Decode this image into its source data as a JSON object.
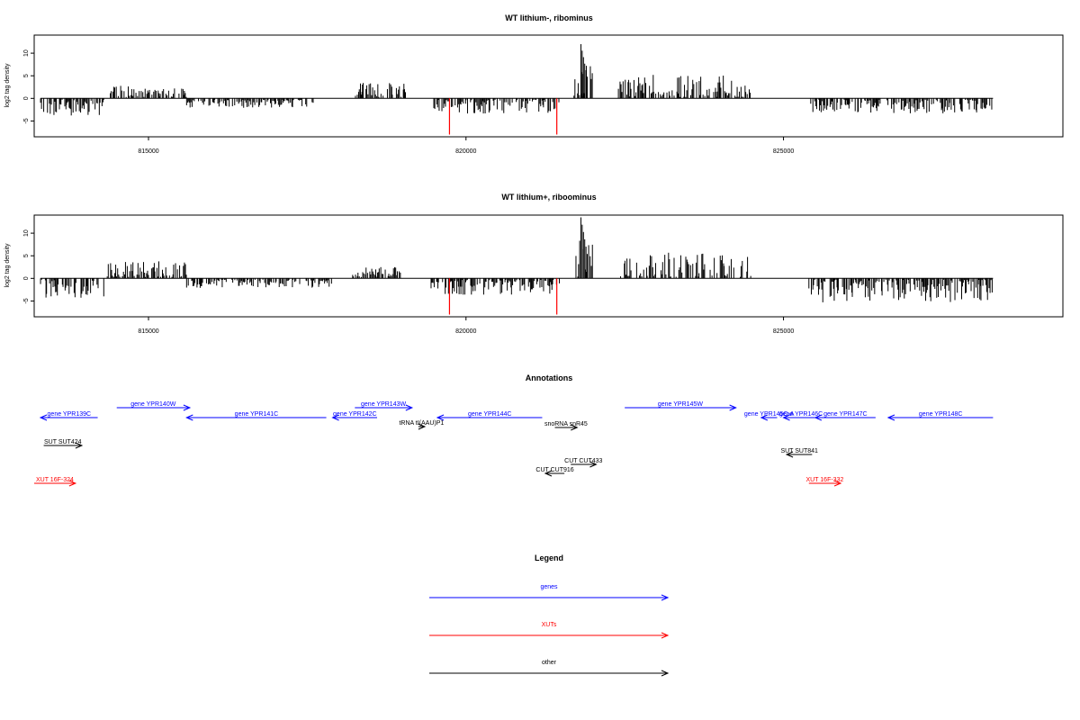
{
  "colors": {
    "genes": "#0000ff",
    "XUTs": "#ff0000",
    "other": "#000000",
    "axis": "#000000"
  },
  "chart_data": [
    {
      "type": "bar",
      "title": "WT lithium-, ribominus",
      "ylabel": "log2 tag density",
      "xlim": [
        813200,
        829400
      ],
      "ylim": [
        -8.5,
        14
      ],
      "xticks": [
        815000,
        820000,
        825000
      ],
      "xtick_labels": [
        "815000",
        "820000",
        "825000"
      ],
      "yticks": [
        -5,
        0,
        5,
        10
      ],
      "ytick_labels": [
        "-5",
        "0",
        "5",
        "10"
      ],
      "grid": false,
      "regions": [
        {
          "from": 813300,
          "to": 814300,
          "sign": -1,
          "amp": 3.5
        },
        {
          "from": 814400,
          "to": 815600,
          "sign": 1,
          "amp": 2.5
        },
        {
          "from": 815600,
          "to": 817600,
          "sign": -1,
          "amp": 1.8
        },
        {
          "from": 818250,
          "to": 819050,
          "sign": 1,
          "amp": 3.2
        },
        {
          "from": 819450,
          "to": 821500,
          "sign": -1,
          "amp": 3.2
        },
        {
          "from": 821700,
          "to": 822000,
          "sign": 1,
          "amp": 8.5
        },
        {
          "from": 822400,
          "to": 824500,
          "sign": 1,
          "amp": 5.0
        },
        {
          "from": 825400,
          "to": 828300,
          "sign": -1,
          "amp": 3.0
        }
      ],
      "highlights": [
        {
          "x": 819740,
          "value": -8,
          "color": "#ff0000"
        },
        {
          "x": 821430,
          "value": -8,
          "color": "#ff0000"
        }
      ],
      "peaks": [
        {
          "x": 821810,
          "value": 12
        }
      ]
    },
    {
      "type": "bar",
      "title": "WT lithium+, riboominus",
      "ylabel": "log2 tag density",
      "xlim": [
        813200,
        829400
      ],
      "ylim": [
        -8.5,
        14
      ],
      "xticks": [
        815000,
        820000,
        825000
      ],
      "xtick_labels": [
        "815000",
        "820000",
        "825000"
      ],
      "yticks": [
        -5,
        0,
        5,
        10
      ],
      "ytick_labels": [
        "-5",
        "0",
        "5",
        "10"
      ],
      "grid": false,
      "regions": [
        {
          "from": 813300,
          "to": 814300,
          "sign": -1,
          "amp": 4.0
        },
        {
          "from": 814350,
          "to": 815600,
          "sign": 1,
          "amp": 3.5
        },
        {
          "from": 815600,
          "to": 817900,
          "sign": -1,
          "amp": 1.8
        },
        {
          "from": 818200,
          "to": 819000,
          "sign": 1,
          "amp": 2.2
        },
        {
          "from": 819450,
          "to": 821500,
          "sign": -1,
          "amp": 3.3
        },
        {
          "from": 821700,
          "to": 822000,
          "sign": 1,
          "amp": 9.0
        },
        {
          "from": 822400,
          "to": 824500,
          "sign": 1,
          "amp": 5.5
        },
        {
          "from": 825400,
          "to": 828300,
          "sign": -1,
          "amp": 5.0
        }
      ],
      "highlights": [
        {
          "x": 819740,
          "value": -8,
          "color": "#ff0000"
        },
        {
          "x": 821430,
          "value": -8,
          "color": "#ff0000"
        }
      ],
      "peaks": [
        {
          "x": 821810,
          "value": 13.5
        }
      ]
    }
  ],
  "annotations": {
    "title": "Annotations",
    "xlim": [
      813200,
      829400
    ],
    "items": [
      {
        "label": "gene YPR139C",
        "category": "genes",
        "strand": "-",
        "start": 813300,
        "end": 814200,
        "row": 1
      },
      {
        "label": "gene YPR140W",
        "category": "genes",
        "strand": "+",
        "start": 814500,
        "end": 815650,
        "row": 0
      },
      {
        "label": "gene YPR141C",
        "category": "genes",
        "strand": "-",
        "start": 815600,
        "end": 817800,
        "row": 1
      },
      {
        "label": "gene YPR142C",
        "category": "genes",
        "strand": "-",
        "start": 817900,
        "end": 818600,
        "row": 1
      },
      {
        "label": "gene YPR143W",
        "category": "genes",
        "strand": "+",
        "start": 818250,
        "end": 819150,
        "row": 0
      },
      {
        "label": "gene YPR144C",
        "category": "genes",
        "strand": "-",
        "start": 819550,
        "end": 821200,
        "row": 1
      },
      {
        "label": "tRNA tI(AAU)P1",
        "category": "other",
        "strand": "+",
        "start": 819250,
        "end": 819350,
        "row": 2
      },
      {
        "label": "snoRNA snR45",
        "category": "other",
        "strand": "+",
        "start": 821400,
        "end": 821750,
        "row": 3
      },
      {
        "label": "gene YPR145W",
        "category": "genes",
        "strand": "+",
        "start": 822500,
        "end": 824250,
        "row": 0
      },
      {
        "label": "gene YPR145C-A",
        "category": "genes",
        "strand": "-",
        "start": 824650,
        "end": 824900,
        "row": 1
      },
      {
        "label": "gene YPR146C",
        "category": "genes",
        "strand": "-",
        "start": 825000,
        "end": 825550,
        "row": 1
      },
      {
        "label": "gene YPR147C",
        "category": "genes",
        "strand": "-",
        "start": 825500,
        "end": 826450,
        "row": 1
      },
      {
        "label": "gene YPR148C",
        "category": "genes",
        "strand": "-",
        "start": 826650,
        "end": 828300,
        "row": 1
      },
      {
        "label": "SUT SUT424",
        "category": "other",
        "strand": "+",
        "start": 813350,
        "end": 813950,
        "row": 4
      },
      {
        "label": "SUT SUT841",
        "category": "other",
        "strand": "-",
        "start": 825050,
        "end": 825450,
        "row": 5
      },
      {
        "label": "CUT CUT433",
        "category": "other",
        "strand": "+",
        "start": 821650,
        "end": 822050,
        "row": 6
      },
      {
        "label": "CUT CUT916",
        "category": "other",
        "strand": "-",
        "start": 821250,
        "end": 821550,
        "row": 7
      },
      {
        "label": "XUT 16F-324",
        "category": "XUTs",
        "strand": "+",
        "start": 813200,
        "end": 813850,
        "row": 8
      },
      {
        "label": "XUT 16F-332",
        "category": "XUTs",
        "strand": "+",
        "start": 825400,
        "end": 825900,
        "row": 8
      }
    ]
  },
  "legend": {
    "title": "Legend",
    "items": [
      {
        "label": "genes",
        "category": "genes"
      },
      {
        "label": "XUTs",
        "category": "XUTs"
      },
      {
        "label": "other",
        "category": "other"
      }
    ]
  }
}
